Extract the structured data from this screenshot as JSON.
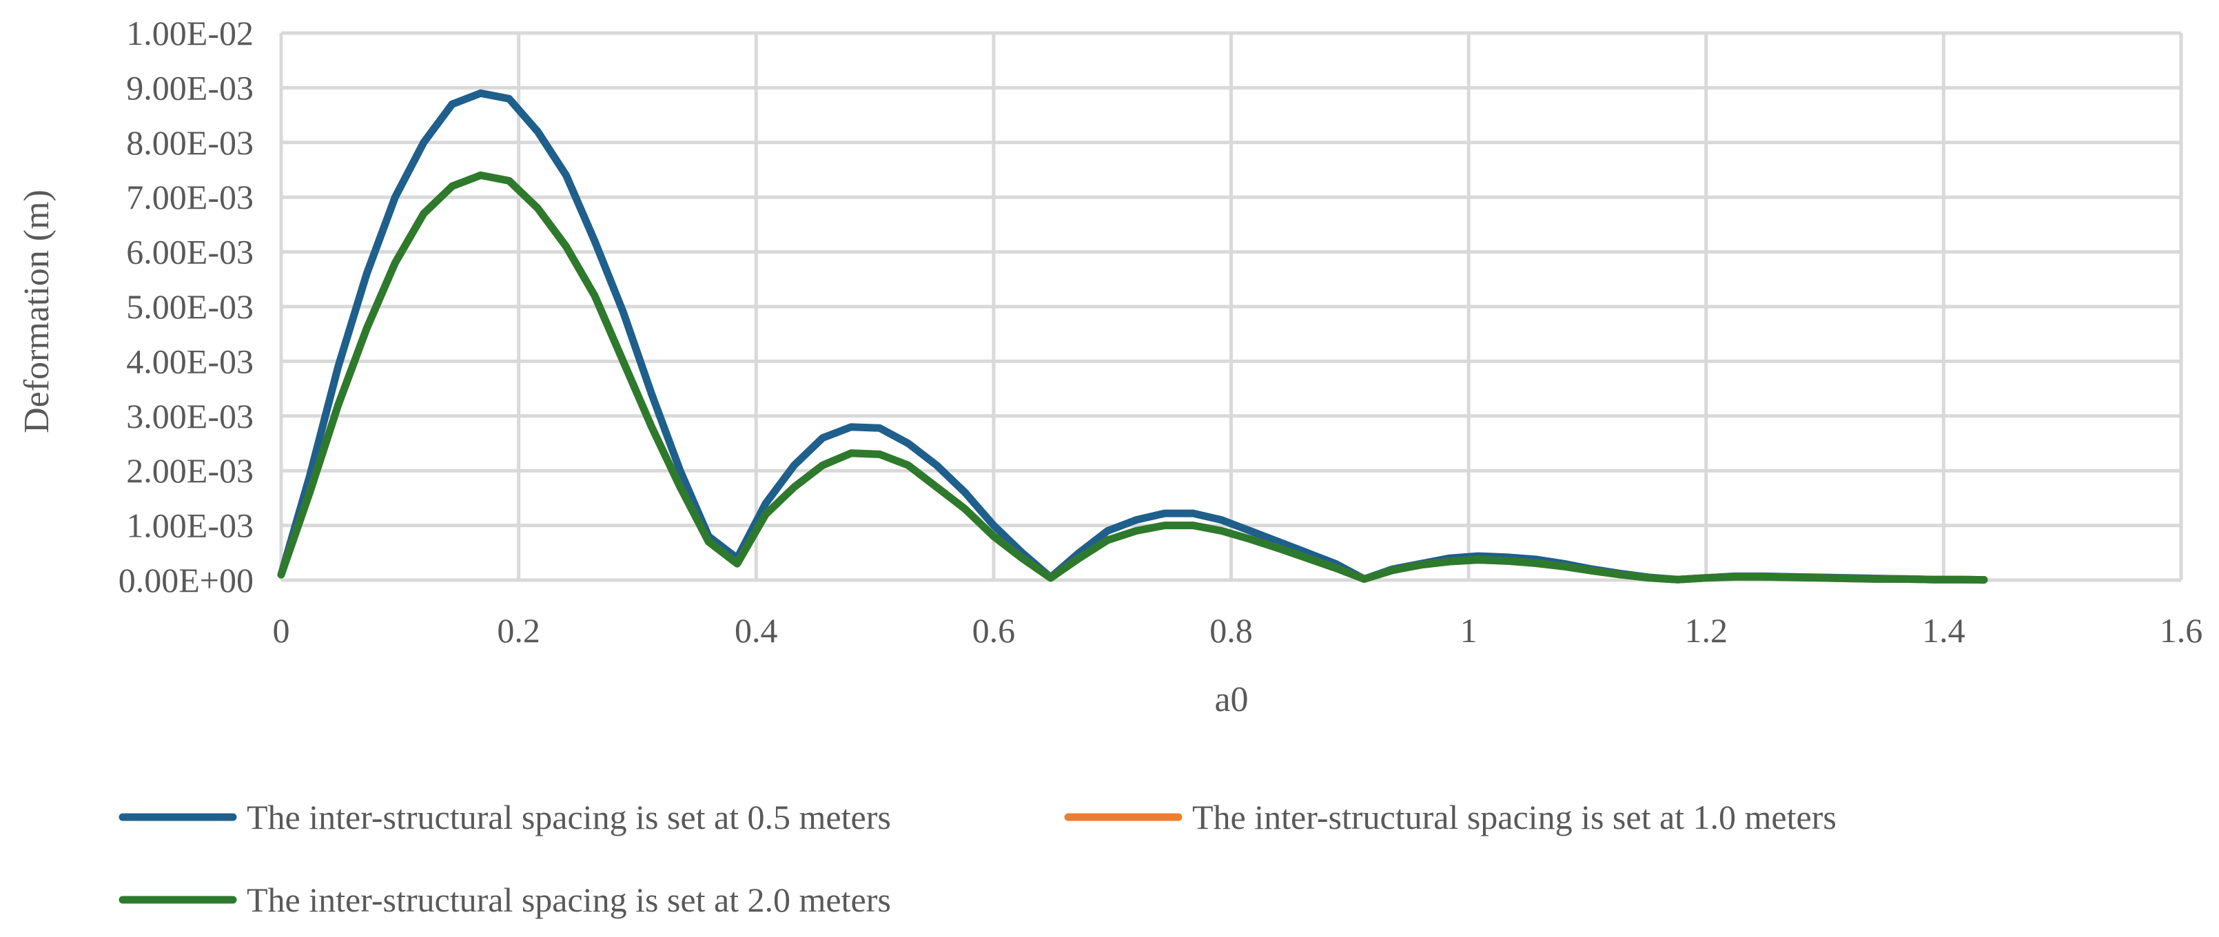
{
  "chart_data": {
    "type": "line",
    "xlabel": "a0",
    "ylabel": "Deformation (m)",
    "xlim": [
      0,
      1.6
    ],
    "ylim": [
      0,
      0.01
    ],
    "x_ticks": [
      "0",
      "0.2",
      "0.4",
      "0.6",
      "0.8",
      "1",
      "1.2",
      "1.4",
      "1.6"
    ],
    "x_tick_values": [
      0,
      0.2,
      0.4,
      0.6,
      0.8,
      1.0,
      1.2,
      1.4,
      1.6
    ],
    "y_ticks": [
      "0.00E+00",
      "1.00E-03",
      "2.00E-03",
      "3.00E-03",
      "4.00E-03",
      "5.00E-03",
      "6.00E-03",
      "7.00E-03",
      "8.00E-03",
      "9.00E-03",
      "1.00E-02"
    ],
    "y_tick_values": [
      0,
      0.001,
      0.002,
      0.003,
      0.004,
      0.005,
      0.006,
      0.007,
      0.008,
      0.009,
      0.01
    ],
    "grid": true,
    "legend_position": "bottom",
    "x": [
      0,
      0.024,
      0.048,
      0.072,
      0.096,
      0.12,
      0.144,
      0.168,
      0.192,
      0.216,
      0.24,
      0.264,
      0.288,
      0.312,
      0.336,
      0.36,
      0.384,
      0.408,
      0.432,
      0.456,
      0.48,
      0.504,
      0.528,
      0.552,
      0.576,
      0.6,
      0.624,
      0.648,
      0.672,
      0.696,
      0.72,
      0.744,
      0.768,
      0.792,
      0.816,
      0.84,
      0.864,
      0.888,
      0.912,
      0.936,
      0.96,
      0.984,
      1.008,
      1.032,
      1.056,
      1.08,
      1.104,
      1.128,
      1.152,
      1.176,
      1.2,
      1.224,
      1.248,
      1.272,
      1.296,
      1.32,
      1.344,
      1.368,
      1.392,
      1.416,
      1.434
    ],
    "series": [
      {
        "name": "The inter-structural spacing is set at 0.5 meters",
        "color": "#1f5f8b",
        "values": [
          0.0001,
          0.0019,
          0.0039,
          0.0056,
          0.007,
          0.008,
          0.0087,
          0.0089,
          0.0088,
          0.0082,
          0.0074,
          0.0062,
          0.0049,
          0.0034,
          0.002,
          0.0008,
          0.0004,
          0.0014,
          0.0021,
          0.0026,
          0.0028,
          0.00278,
          0.0025,
          0.0021,
          0.0016,
          0.001,
          0.0005,
          5e-05,
          0.0005,
          0.0009,
          0.0011,
          0.00122,
          0.00122,
          0.0011,
          0.0009,
          0.0007,
          0.0005,
          0.0003,
          2e-05,
          0.0002,
          0.0003,
          0.0004,
          0.00044,
          0.00042,
          0.00038,
          0.0003,
          0.0002,
          0.00012,
          5e-05,
          1e-05,
          4e-05,
          7e-05,
          7e-05,
          6e-05,
          5e-05,
          4e-05,
          3e-05,
          2e-05,
          1e-05,
          1e-05,
          5e-06
        ]
      },
      {
        "name": "The inter-structural spacing is set at 1.0 meters",
        "color": "#ed7d31",
        "values": [
          0.0001,
          0.0016,
          0.0032,
          0.0046,
          0.0058,
          0.0067,
          0.0072,
          0.0074,
          0.0073,
          0.0068,
          0.0061,
          0.0052,
          0.004,
          0.0028,
          0.0017,
          0.0007,
          0.0003,
          0.0012,
          0.0017,
          0.0021,
          0.00232,
          0.0023,
          0.0021,
          0.0017,
          0.0013,
          0.0008,
          0.0004,
          4e-05,
          0.0004,
          0.00073,
          0.0009,
          0.001,
          0.001,
          0.0009,
          0.00075,
          0.00058,
          0.0004,
          0.00022,
          2e-05,
          0.00018,
          0.00028,
          0.00034,
          0.00037,
          0.00035,
          0.00031,
          0.00025,
          0.00017,
          0.0001,
          4e-05,
          1e-05,
          4e-05,
          6e-05,
          6e-05,
          5e-05,
          4e-05,
          3e-05,
          2e-05,
          2e-05,
          1e-05,
          1e-05,
          5e-06
        ]
      },
      {
        "name": "The inter-structural spacing is set at 2.0 meters",
        "color": "#2d7a2d",
        "values": [
          0.0001,
          0.0016,
          0.0032,
          0.0046,
          0.0058,
          0.0067,
          0.0072,
          0.0074,
          0.0073,
          0.0068,
          0.0061,
          0.0052,
          0.004,
          0.0028,
          0.0017,
          0.0007,
          0.0003,
          0.0012,
          0.0017,
          0.0021,
          0.00232,
          0.0023,
          0.0021,
          0.0017,
          0.0013,
          0.0008,
          0.0004,
          4e-05,
          0.0004,
          0.00073,
          0.0009,
          0.001,
          0.001,
          0.0009,
          0.00075,
          0.00058,
          0.0004,
          0.00022,
          2e-05,
          0.00018,
          0.00028,
          0.00034,
          0.00037,
          0.00035,
          0.00031,
          0.00025,
          0.00017,
          0.0001,
          4e-05,
          1e-05,
          4e-05,
          6e-05,
          6e-05,
          5e-05,
          4e-05,
          3e-05,
          2e-05,
          2e-05,
          1e-05,
          1e-05,
          5e-06
        ]
      }
    ]
  }
}
